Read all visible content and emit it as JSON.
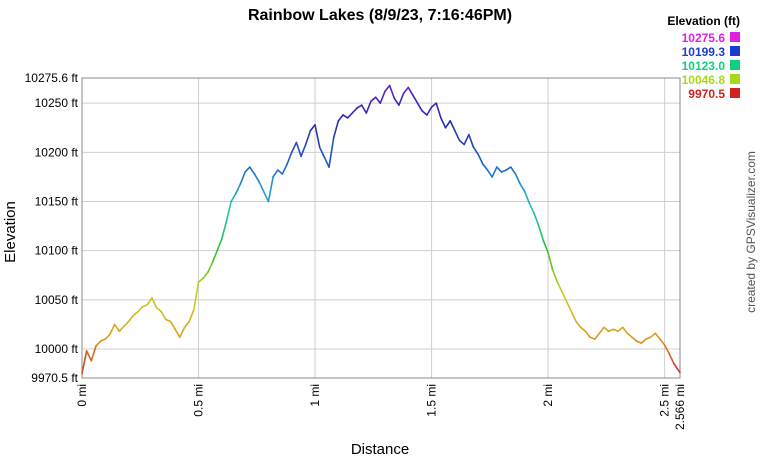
{
  "chart_data": {
    "type": "line",
    "title": "Rainbow Lakes (8/9/23, 7:16:46PM)",
    "xlabel": "Distance",
    "ylabel": "Elevation",
    "xlim": [
      0,
      2.566
    ],
    "ylim": [
      9970.5,
      10275.6
    ],
    "grid": true,
    "x_ticks": [
      {
        "value": 0,
        "label": "0 mi"
      },
      {
        "value": 0.5,
        "label": "0.5 mi"
      },
      {
        "value": 1,
        "label": "1 mi"
      },
      {
        "value": 1.5,
        "label": "1.5 mi"
      },
      {
        "value": 2,
        "label": "2 mi"
      },
      {
        "value": 2.5,
        "label": "2.5 mi"
      },
      {
        "value": 2.566,
        "label": "2.566 mi"
      }
    ],
    "y_ticks": [
      {
        "value": 9970.5,
        "label": "9970.5 ft"
      },
      {
        "value": 10000,
        "label": "10000 ft"
      },
      {
        "value": 10050,
        "label": "10050 ft"
      },
      {
        "value": 10100,
        "label": "10100 ft"
      },
      {
        "value": 10150,
        "label": "10150 ft"
      },
      {
        "value": 10200,
        "label": "10200 ft"
      },
      {
        "value": 10250,
        "label": "10250 ft"
      },
      {
        "value": 10275.6,
        "label": "10275.6 ft"
      }
    ],
    "legend": {
      "title": "Elevation (ft)",
      "position": "top-right",
      "entries": [
        {
          "label": "10275.6",
          "color": "#e020e0"
        },
        {
          "label": "10199.3",
          "color": "#1a3ccf"
        },
        {
          "label": "10123.0",
          "color": "#10d080"
        },
        {
          "label": "10046.8",
          "color": "#a8d818"
        },
        {
          "label": "9970.5",
          "color": "#d02020"
        }
      ]
    },
    "color_scale": [
      "#cc2222",
      "#d8a020",
      "#c8d020",
      "#30c030",
      "#20c0c8",
      "#2060c8",
      "#2828b0",
      "#7020c8"
    ],
    "series": [
      {
        "x": [
          0,
          0.02,
          0.04,
          0.06,
          0.08,
          0.1,
          0.12,
          0.14,
          0.16,
          0.18,
          0.2,
          0.22,
          0.24,
          0.26,
          0.28,
          0.3,
          0.32,
          0.34,
          0.36,
          0.38,
          0.4,
          0.42,
          0.44,
          0.46,
          0.48,
          0.5,
          0.52,
          0.54,
          0.56,
          0.58,
          0.6,
          0.62,
          0.64,
          0.66,
          0.68,
          0.7,
          0.72,
          0.74,
          0.76,
          0.78,
          0.8,
          0.82,
          0.84,
          0.86,
          0.88,
          0.9,
          0.92,
          0.94,
          0.96,
          0.98,
          1.0,
          1.02,
          1.04,
          1.06,
          1.08,
          1.1,
          1.12,
          1.14,
          1.16,
          1.18,
          1.2,
          1.22,
          1.24,
          1.26,
          1.28,
          1.3,
          1.32,
          1.34,
          1.36,
          1.38,
          1.4,
          1.42,
          1.44,
          1.46,
          1.48,
          1.5,
          1.52,
          1.54,
          1.56,
          1.58,
          1.6,
          1.62,
          1.64,
          1.66,
          1.68,
          1.7,
          1.72,
          1.74,
          1.76,
          1.78,
          1.8,
          1.82,
          1.84,
          1.86,
          1.88,
          1.9,
          1.92,
          1.94,
          1.96,
          1.98,
          2.0,
          2.02,
          2.04,
          2.06,
          2.08,
          2.1,
          2.12,
          2.14,
          2.16,
          2.18,
          2.2,
          2.22,
          2.24,
          2.26,
          2.28,
          2.3,
          2.32,
          2.34,
          2.36,
          2.38,
          2.4,
          2.42,
          2.44,
          2.46,
          2.48,
          2.5,
          2.52,
          2.54,
          2.566
        ],
        "y": [
          9975,
          9998,
          9988,
          10003,
          10008,
          10010,
          10015,
          10025,
          10018,
          10023,
          10028,
          10034,
          10038,
          10043,
          10045,
          10052,
          10042,
          10038,
          10030,
          10028,
          10020,
          10012,
          10022,
          10028,
          10040,
          10068,
          10072,
          10078,
          10088,
          10100,
          10112,
          10130,
          10150,
          10158,
          10168,
          10180,
          10185,
          10178,
          10170,
          10160,
          10150,
          10175,
          10182,
          10178,
          10188,
          10200,
          10210,
          10196,
          10208,
          10222,
          10228,
          10205,
          10195,
          10185,
          10215,
          10232,
          10238,
          10235,
          10240,
          10245,
          10248,
          10240,
          10252,
          10256,
          10250,
          10262,
          10268,
          10255,
          10248,
          10260,
          10266,
          10258,
          10250,
          10242,
          10238,
          10246,
          10250,
          10235,
          10225,
          10232,
          10222,
          10212,
          10208,
          10218,
          10205,
          10198,
          10188,
          10182,
          10175,
          10185,
          10180,
          10182,
          10185,
          10178,
          10168,
          10160,
          10148,
          10138,
          10125,
          10110,
          10098,
          10080,
          10068,
          10058,
          10048,
          10038,
          10028,
          10022,
          10018,
          10012,
          10010,
          10016,
          10022,
          10018,
          10020,
          10018,
          10022,
          10016,
          10012,
          10008,
          10006,
          10010,
          10012,
          10016,
          10010,
          10004,
          9995,
          9985,
          9976
        ]
      }
    ]
  },
  "credit": "created by GPSVisualizer.com"
}
